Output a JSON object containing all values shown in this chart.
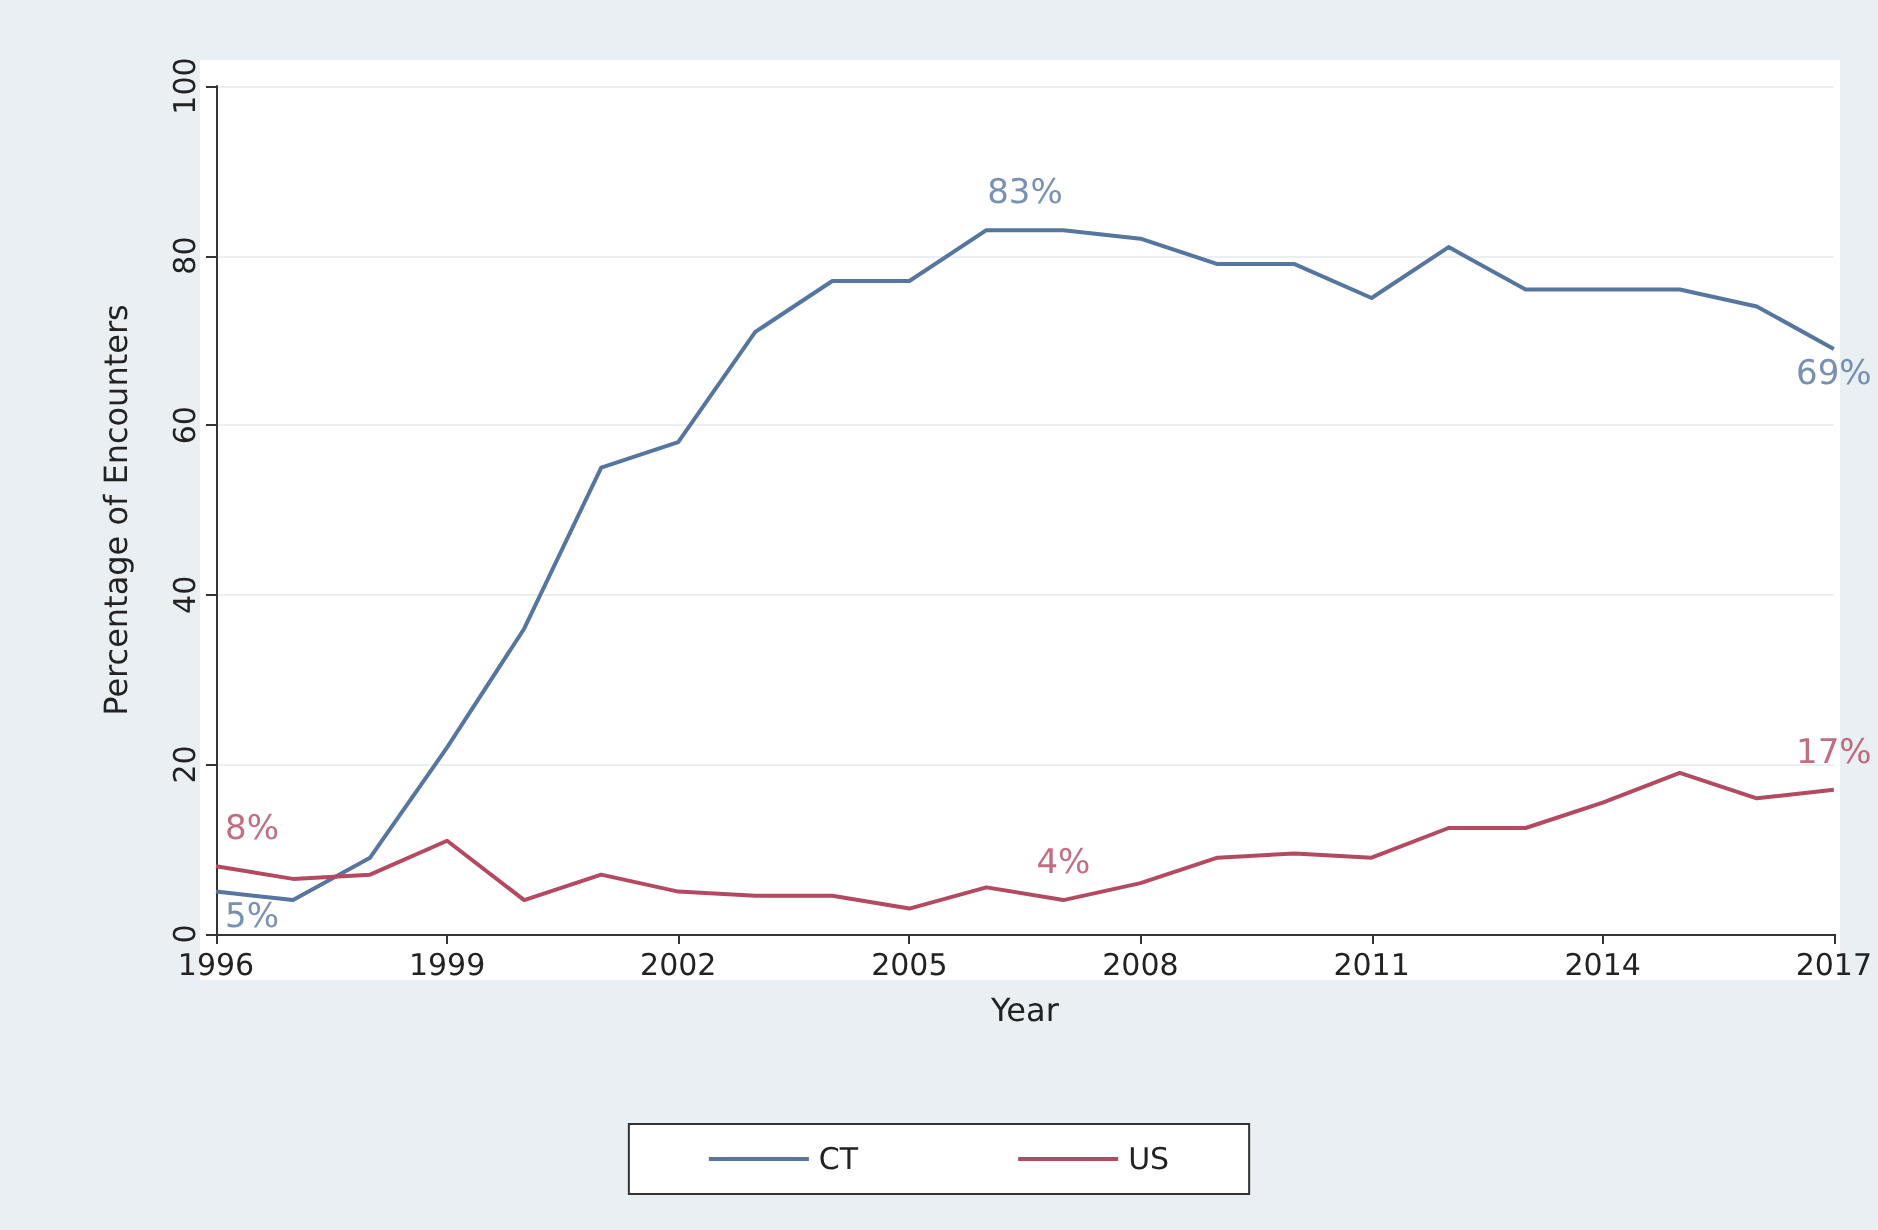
{
  "chart_data": {
    "type": "line",
    "xlabel": "Year",
    "ylabel": "Percentage of Encounters",
    "x": [
      1996,
      1997,
      1998,
      1999,
      2000,
      2001,
      2002,
      2003,
      2004,
      2005,
      2006,
      2007,
      2008,
      2009,
      2010,
      2011,
      2012,
      2013,
      2014,
      2015,
      2016,
      2017
    ],
    "series": [
      {
        "name": "CT",
        "color": "#56759f",
        "values": [
          5,
          4,
          9,
          22,
          36,
          55,
          58,
          71,
          77,
          77,
          83,
          83,
          82,
          79,
          79,
          75,
          81,
          76,
          76,
          76,
          74,
          69
        ]
      },
      {
        "name": "US",
        "color": "#b34a62",
        "values": [
          8,
          6.5,
          7,
          11,
          4,
          7,
          5,
          4.5,
          4.5,
          3,
          5.5,
          4,
          6,
          9,
          9.5,
          9,
          12.5,
          12.5,
          15.5,
          19,
          16,
          17
        ]
      }
    ],
    "annotations": [
      {
        "text": "5%",
        "x": 1996,
        "y": 5
      },
      {
        "text": "8%",
        "x": 1996,
        "y": 8
      },
      {
        "text": "83%",
        "x": 2006.5,
        "y": 83
      },
      {
        "text": "4%",
        "x": 2007,
        "y": 4
      },
      {
        "text": "69%",
        "x": 2017,
        "y": 69
      },
      {
        "text": "17%",
        "x": 2017,
        "y": 17
      }
    ],
    "xlim": [
      1996,
      2017
    ],
    "xticks": [
      1996,
      1999,
      2002,
      2005,
      2008,
      2011,
      2014,
      2017
    ],
    "ylim": [
      0,
      100
    ],
    "yticks": [
      0,
      20,
      40,
      60,
      80,
      100
    ],
    "grid": "y",
    "legend": "bottom",
    "marker": "none",
    "line_style": "solid"
  }
}
